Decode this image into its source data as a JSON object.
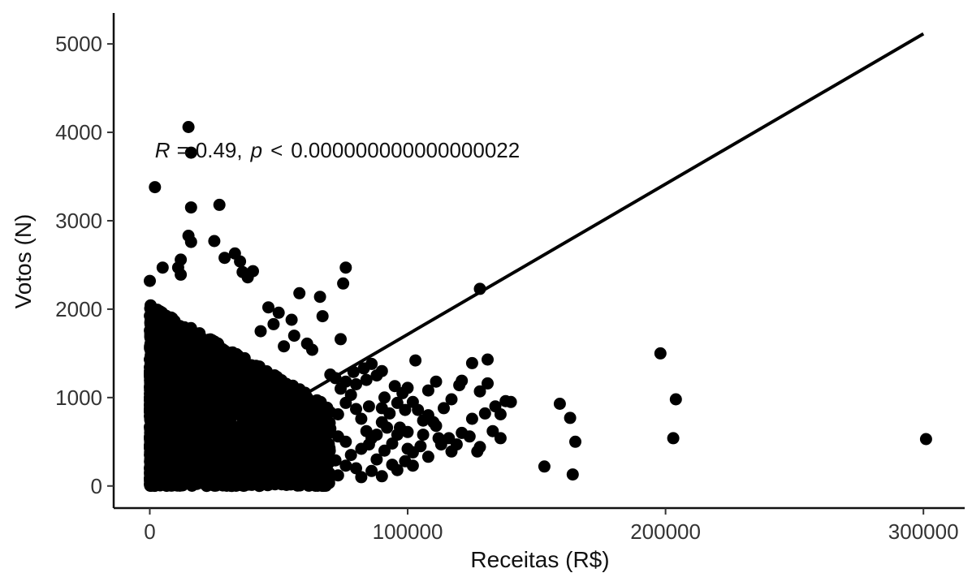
{
  "chart_data": {
    "type": "scatter",
    "title": "",
    "xlabel": "Receitas (R$)",
    "ylabel": "Votos (N)",
    "xlim": [
      -14000,
      316000
    ],
    "ylim": [
      -250,
      5350
    ],
    "x_ticks": [
      0,
      100000,
      200000,
      300000
    ],
    "x_tick_labels": [
      "0",
      "100000",
      "200000",
      "300000"
    ],
    "y_ticks": [
      0,
      1000,
      2000,
      3000,
      4000,
      5000
    ],
    "y_tick_labels": [
      "0",
      "1000",
      "2000",
      "3000",
      "4000",
      "5000"
    ],
    "grid": false,
    "legend": "none",
    "annotation": {
      "r_symbol": "R",
      "eq": "=",
      "r_value": "0.49,",
      "p_symbol": "p",
      "lt": "<",
      "p_value": "0.000000000000000022",
      "x": 2000,
      "y": 3800
    },
    "regression_line": {
      "x": [
        0,
        300000
      ],
      "y": [
        15,
        5115
      ]
    },
    "cluster": {
      "x_max": 70000,
      "y_max_at_0": 2050,
      "y_max_at_xmax": 900,
      "count": 2600
    },
    "points": [
      [
        15000,
        4060
      ],
      [
        16000,
        3770
      ],
      [
        2000,
        3380
      ],
      [
        27000,
        3180
      ],
      [
        16000,
        3150
      ],
      [
        15000,
        2830
      ],
      [
        16000,
        2760
      ],
      [
        25000,
        2770
      ],
      [
        12000,
        2560
      ],
      [
        33000,
        2630
      ],
      [
        5000,
        2470
      ],
      [
        11000,
        2470
      ],
      [
        36000,
        2420
      ],
      [
        29000,
        2580
      ],
      [
        35000,
        2540
      ],
      [
        40000,
        2430
      ],
      [
        12000,
        2390
      ],
      [
        0,
        2320
      ],
      [
        38000,
        2360
      ],
      [
        76000,
        2470
      ],
      [
        75000,
        2290
      ],
      [
        128000,
        2230
      ],
      [
        58000,
        2180
      ],
      [
        66000,
        2140
      ],
      [
        46000,
        2020
      ],
      [
        50000,
        1960
      ],
      [
        67000,
        1920
      ],
      [
        55000,
        1880
      ],
      [
        48000,
        1830
      ],
      [
        74000,
        1660
      ],
      [
        61000,
        1610
      ],
      [
        52000,
        1580
      ],
      [
        63000,
        1540
      ],
      [
        43000,
        1750
      ],
      [
        56000,
        1700
      ],
      [
        198000,
        1500
      ],
      [
        103000,
        1420
      ],
      [
        131000,
        1430
      ],
      [
        125000,
        1390
      ],
      [
        86000,
        1380
      ],
      [
        83000,
        1330
      ],
      [
        121000,
        1190
      ],
      [
        131000,
        1160
      ],
      [
        111000,
        1180
      ],
      [
        120000,
        1140
      ],
      [
        95000,
        1130
      ],
      [
        100000,
        1110
      ],
      [
        108000,
        1080
      ],
      [
        128000,
        1070
      ],
      [
        138000,
        960
      ],
      [
        140000,
        950
      ],
      [
        117000,
        980
      ],
      [
        159000,
        930
      ],
      [
        204000,
        980
      ],
      [
        163000,
        770
      ],
      [
        85000,
        900
      ],
      [
        91000,
        1000
      ],
      [
        99000,
        860
      ],
      [
        114000,
        880
      ],
      [
        130000,
        820
      ],
      [
        134000,
        900
      ],
      [
        136000,
        810
      ],
      [
        106000,
        740
      ],
      [
        111000,
        680
      ],
      [
        125000,
        760
      ],
      [
        90000,
        720
      ],
      [
        97000,
        660
      ],
      [
        105000,
        450
      ],
      [
        112000,
        540
      ],
      [
        116000,
        540
      ],
      [
        121000,
        600
      ],
      [
        136000,
        540
      ],
      [
        165000,
        500
      ],
      [
        203000,
        540
      ],
      [
        301000,
        530
      ],
      [
        117000,
        390
      ],
      [
        128000,
        440
      ],
      [
        127000,
        390
      ],
      [
        94000,
        480
      ],
      [
        100000,
        420
      ],
      [
        102000,
        380
      ],
      [
        88000,
        580
      ],
      [
        94000,
        240
      ],
      [
        99000,
        280
      ],
      [
        102000,
        230
      ],
      [
        153000,
        220
      ],
      [
        164000,
        130
      ],
      [
        78000,
        350
      ],
      [
        82000,
        420
      ],
      [
        88000,
        300
      ],
      [
        80000,
        200
      ],
      [
        86000,
        170
      ],
      [
        73000,
        120
      ],
      [
        69000,
        40
      ],
      [
        55000,
        120
      ],
      [
        60000,
        80
      ],
      [
        52000,
        60
      ],
      [
        70000,
        650
      ],
      [
        73000,
        810
      ],
      [
        76000,
        940
      ],
      [
        78000,
        1030
      ],
      [
        80000,
        870
      ],
      [
        82000,
        760
      ],
      [
        84000,
        620
      ],
      [
        86000,
        540
      ],
      [
        90000,
        880
      ],
      [
        93000,
        820
      ],
      [
        96000,
        940
      ],
      [
        98000,
        1050
      ],
      [
        102000,
        950
      ],
      [
        104000,
        860
      ],
      [
        108000,
        800
      ],
      [
        110000,
        720
      ],
      [
        80000,
        1150
      ],
      [
        84000,
        1200
      ],
      [
        88000,
        1250
      ],
      [
        79000,
        1290
      ],
      [
        90000,
        1300
      ],
      [
        76000,
        1180
      ],
      [
        74000,
        1100
      ],
      [
        72000,
        1220
      ],
      [
        70000,
        1260
      ],
      [
        92000,
        660
      ],
      [
        96000,
        580
      ],
      [
        100000,
        610
      ],
      [
        106000,
        580
      ],
      [
        85000,
        470
      ],
      [
        76000,
        500
      ],
      [
        73000,
        560
      ],
      [
        91000,
        400
      ],
      [
        108000,
        330
      ],
      [
        113000,
        470
      ],
      [
        119000,
        470
      ],
      [
        124000,
        560
      ],
      [
        133000,
        620
      ],
      [
        96000,
        180
      ],
      [
        90000,
        110
      ],
      [
        82000,
        100
      ],
      [
        76000,
        230
      ],
      [
        72000,
        290
      ]
    ]
  }
}
